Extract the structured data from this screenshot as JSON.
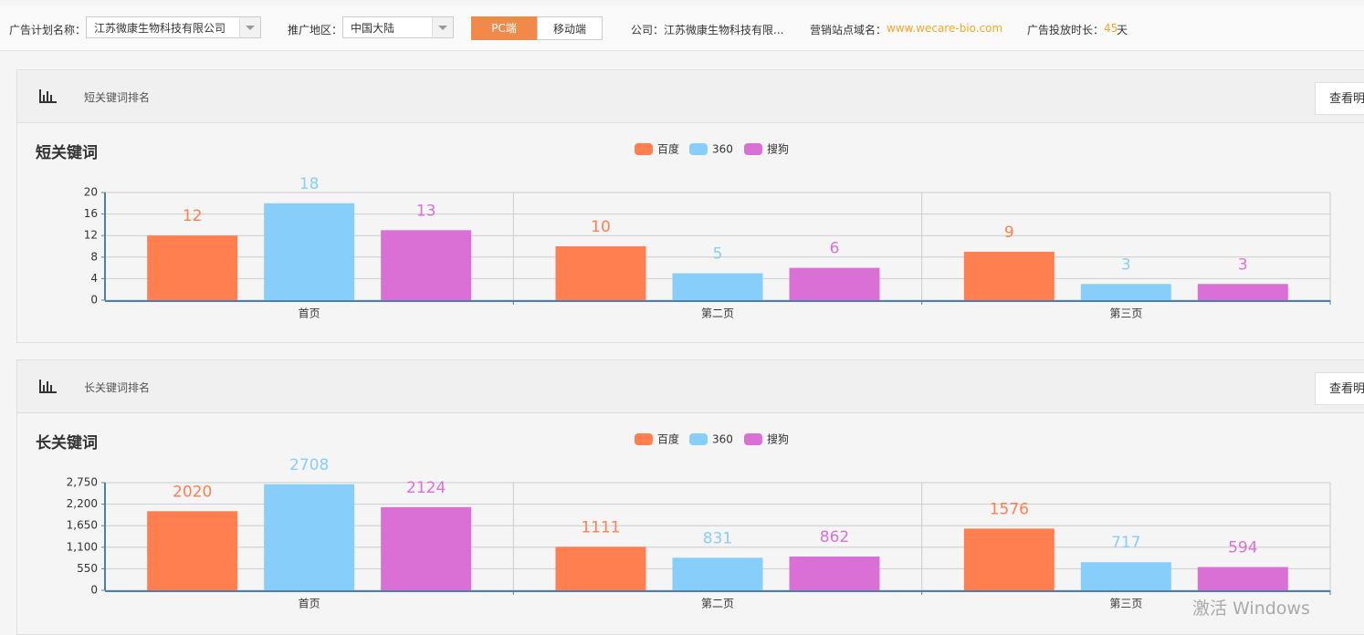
{
  "toolbar": {
    "plan_label": "广告计划名称：",
    "plan_value": "江苏微康生物科技有限公司",
    "region_label": "推广地区：",
    "region_value": "中国大陆",
    "tab_pc": "PC端",
    "tab_mobile": "移动端",
    "company": "公司：江苏微康生物科技有限...",
    "domain_label": "营销站点域名：",
    "domain_value": "www.wecare-bio.com",
    "duration_label": "广告投放时长：",
    "duration_value": "45",
    "duration_unit": "天"
  },
  "panels": [
    {
      "header": "短关键词排名",
      "button": "查看明"
    },
    {
      "header": "长关键词排名",
      "button": "查看明"
    }
  ],
  "watermark": "激活 Windows",
  "chart_data": [
    {
      "type": "bar",
      "title": "短关键词",
      "categories": [
        "首页",
        "第二页",
        "第三页"
      ],
      "series": [
        {
          "name": "百度",
          "color": "#ff7f50",
          "values": [
            12,
            10,
            9
          ]
        },
        {
          "name": "360",
          "color": "#87cefa",
          "values": [
            18,
            5,
            3
          ]
        },
        {
          "name": "搜狗",
          "color": "#da70d6",
          "values": [
            13,
            6,
            3
          ]
        }
      ],
      "ylim": [
        0,
        20
      ],
      "yticks": [
        0,
        4,
        8,
        12,
        16,
        20
      ],
      "grid": true,
      "legend": "top"
    },
    {
      "type": "bar",
      "title": "长关键词",
      "categories": [
        "首页",
        "第二页",
        "第三页"
      ],
      "series": [
        {
          "name": "百度",
          "color": "#ff7f50",
          "values": [
            2020,
            1111,
            1576
          ]
        },
        {
          "name": "360",
          "color": "#87cefa",
          "values": [
            2708,
            831,
            717
          ]
        },
        {
          "name": "搜狗",
          "color": "#da70d6",
          "values": [
            2124,
            862,
            594
          ]
        }
      ],
      "ylim": [
        0,
        2750
      ],
      "yticks": [
        0,
        550,
        {
          "value": 1100,
          "label": "1,100"
        },
        {
          "value": 1650,
          "label": "1,650"
        },
        {
          "value": 2200,
          "label": "2,200"
        },
        {
          "value": 2750,
          "label": "2,750"
        }
      ],
      "grid": true,
      "legend": "top"
    }
  ]
}
